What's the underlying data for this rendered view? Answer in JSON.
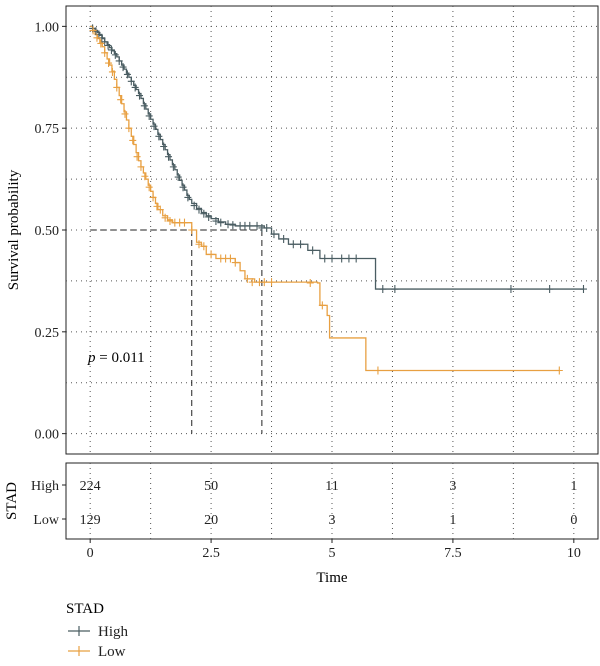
{
  "chart_data": {
    "type": "line",
    "subtype": "kaplan-meier",
    "ylabel": "Survival probability",
    "xlabel": "Time",
    "xlim": [
      -0.5,
      10.5
    ],
    "ylim": [
      -0.05,
      1.05
    ],
    "x_ticks": [
      0,
      2.5,
      5,
      7.5,
      10
    ],
    "x_tick_labels": [
      "0",
      "2.5",
      "5",
      "7.5",
      "10"
    ],
    "y_ticks": [
      0,
      0.25,
      0.5,
      0.75,
      1
    ],
    "y_tick_labels": [
      "0.00",
      "0.25",
      "0.50",
      "0.75",
      "1.00"
    ],
    "grid": true,
    "annotation": {
      "text_prefix": "p",
      "text_value": " = 0.011",
      "x": 0.02,
      "y": 0.19
    },
    "median_lines": {
      "y": 0.5,
      "x": [
        2.1,
        3.55
      ]
    },
    "colors": {
      "High": "#4a5d62",
      "Low": "#e8a042"
    },
    "series": [
      {
        "name": "High",
        "steps": [
          [
            0,
            1.0
          ],
          [
            0.05,
            0.995
          ],
          [
            0.1,
            0.99
          ],
          [
            0.15,
            0.985
          ],
          [
            0.2,
            0.978
          ],
          [
            0.25,
            0.97
          ],
          [
            0.3,
            0.962
          ],
          [
            0.35,
            0.955
          ],
          [
            0.4,
            0.948
          ],
          [
            0.45,
            0.94
          ],
          [
            0.5,
            0.933
          ],
          [
            0.55,
            0.925
          ],
          [
            0.6,
            0.915
          ],
          [
            0.65,
            0.905
          ],
          [
            0.7,
            0.895
          ],
          [
            0.75,
            0.885
          ],
          [
            0.8,
            0.875
          ],
          [
            0.85,
            0.865
          ],
          [
            0.9,
            0.855
          ],
          [
            0.95,
            0.845
          ],
          [
            1.0,
            0.835
          ],
          [
            1.05,
            0.823
          ],
          [
            1.1,
            0.81
          ],
          [
            1.15,
            0.797
          ],
          [
            1.2,
            0.785
          ],
          [
            1.25,
            0.772
          ],
          [
            1.3,
            0.76
          ],
          [
            1.35,
            0.747
          ],
          [
            1.4,
            0.735
          ],
          [
            1.45,
            0.722
          ],
          [
            1.5,
            0.71
          ],
          [
            1.55,
            0.697
          ],
          [
            1.6,
            0.685
          ],
          [
            1.65,
            0.672
          ],
          [
            1.7,
            0.66
          ],
          [
            1.75,
            0.648
          ],
          [
            1.8,
            0.635
          ],
          [
            1.85,
            0.622
          ],
          [
            1.9,
            0.61
          ],
          [
            1.95,
            0.598
          ],
          [
            2.0,
            0.585
          ],
          [
            2.05,
            0.575
          ],
          [
            2.1,
            0.565
          ],
          [
            2.2,
            0.553
          ],
          [
            2.3,
            0.543
          ],
          [
            2.4,
            0.535
          ],
          [
            2.5,
            0.528
          ],
          [
            2.65,
            0.52
          ],
          [
            2.8,
            0.514
          ],
          [
            3.0,
            0.51
          ],
          [
            3.6,
            0.505
          ],
          [
            3.75,
            0.49
          ],
          [
            3.9,
            0.478
          ],
          [
            4.1,
            0.465
          ],
          [
            4.5,
            0.45
          ],
          [
            4.75,
            0.43
          ],
          [
            5.9,
            0.355
          ]
        ],
        "end_x": 10.2,
        "censors": [
          [
            0.05,
            0.995
          ],
          [
            0.12,
            0.988
          ],
          [
            0.18,
            0.98
          ],
          [
            0.24,
            0.972
          ],
          [
            0.3,
            0.962
          ],
          [
            0.37,
            0.953
          ],
          [
            0.44,
            0.942
          ],
          [
            0.52,
            0.93
          ],
          [
            0.6,
            0.915
          ],
          [
            0.68,
            0.9
          ],
          [
            0.77,
            0.882
          ],
          [
            0.85,
            0.865
          ],
          [
            0.93,
            0.85
          ],
          [
            1.02,
            0.83
          ],
          [
            1.12,
            0.805
          ],
          [
            1.22,
            0.78
          ],
          [
            1.32,
            0.755
          ],
          [
            1.42,
            0.73
          ],
          [
            1.52,
            0.705
          ],
          [
            1.62,
            0.68
          ],
          [
            1.72,
            0.655
          ],
          [
            1.82,
            0.63
          ],
          [
            1.92,
            0.605
          ],
          [
            2.02,
            0.58
          ],
          [
            2.15,
            0.56
          ],
          [
            2.25,
            0.55
          ],
          [
            2.35,
            0.54
          ],
          [
            2.45,
            0.532
          ],
          [
            2.6,
            0.522
          ],
          [
            2.7,
            0.518
          ],
          [
            2.85,
            0.514
          ],
          [
            2.95,
            0.512
          ],
          [
            3.1,
            0.51
          ],
          [
            3.2,
            0.51
          ],
          [
            3.3,
            0.51
          ],
          [
            3.45,
            0.51
          ],
          [
            3.55,
            0.505
          ],
          [
            3.65,
            0.505
          ],
          [
            3.8,
            0.49
          ],
          [
            4.0,
            0.478
          ],
          [
            4.2,
            0.465
          ],
          [
            4.35,
            0.465
          ],
          [
            4.6,
            0.45
          ],
          [
            4.85,
            0.43
          ],
          [
            5.0,
            0.43
          ],
          [
            5.2,
            0.43
          ],
          [
            5.35,
            0.43
          ],
          [
            5.5,
            0.43
          ],
          [
            6.05,
            0.355
          ],
          [
            6.3,
            0.355
          ],
          [
            8.7,
            0.355
          ],
          [
            9.5,
            0.355
          ],
          [
            10.2,
            0.355
          ]
        ]
      },
      {
        "name": "Low",
        "steps": [
          [
            0,
            1.0
          ],
          [
            0.05,
            0.99
          ],
          [
            0.1,
            0.98
          ],
          [
            0.15,
            0.97
          ],
          [
            0.2,
            0.96
          ],
          [
            0.25,
            0.95
          ],
          [
            0.3,
            0.935
          ],
          [
            0.35,
            0.92
          ],
          [
            0.4,
            0.905
          ],
          [
            0.45,
            0.89
          ],
          [
            0.5,
            0.87
          ],
          [
            0.55,
            0.85
          ],
          [
            0.6,
            0.83
          ],
          [
            0.65,
            0.81
          ],
          [
            0.7,
            0.79
          ],
          [
            0.75,
            0.77
          ],
          [
            0.8,
            0.75
          ],
          [
            0.85,
            0.73
          ],
          [
            0.9,
            0.71
          ],
          [
            0.95,
            0.69
          ],
          [
            1.0,
            0.67
          ],
          [
            1.05,
            0.655
          ],
          [
            1.1,
            0.64
          ],
          [
            1.15,
            0.625
          ],
          [
            1.2,
            0.61
          ],
          [
            1.25,
            0.595
          ],
          [
            1.3,
            0.58
          ],
          [
            1.35,
            0.565
          ],
          [
            1.4,
            0.55
          ],
          [
            1.5,
            0.535
          ],
          [
            1.6,
            0.525
          ],
          [
            1.7,
            0.518
          ],
          [
            2.1,
            0.5
          ],
          [
            2.2,
            0.47
          ],
          [
            2.3,
            0.46
          ],
          [
            2.4,
            0.44
          ],
          [
            2.6,
            0.43
          ],
          [
            3.0,
            0.42
          ],
          [
            3.1,
            0.4
          ],
          [
            3.2,
            0.38
          ],
          [
            3.4,
            0.372
          ],
          [
            4.7,
            0.37
          ],
          [
            4.75,
            0.315
          ],
          [
            4.9,
            0.29
          ],
          [
            4.95,
            0.235
          ],
          [
            5.7,
            0.155
          ]
        ],
        "end_x": 9.7,
        "censors": [
          [
            0.06,
            0.99
          ],
          [
            0.14,
            0.972
          ],
          [
            0.22,
            0.958
          ],
          [
            0.3,
            0.935
          ],
          [
            0.38,
            0.91
          ],
          [
            0.46,
            0.888
          ],
          [
            0.55,
            0.85
          ],
          [
            0.63,
            0.82
          ],
          [
            0.72,
            0.785
          ],
          [
            0.8,
            0.75
          ],
          [
            0.88,
            0.72
          ],
          [
            0.97,
            0.68
          ],
          [
            1.05,
            0.655
          ],
          [
            1.13,
            0.632
          ],
          [
            1.22,
            0.605
          ],
          [
            1.3,
            0.58
          ],
          [
            1.38,
            0.558
          ],
          [
            1.45,
            0.55
          ],
          [
            1.55,
            0.53
          ],
          [
            1.65,
            0.522
          ],
          [
            1.75,
            0.518
          ],
          [
            1.85,
            0.518
          ],
          [
            1.95,
            0.518
          ],
          [
            2.1,
            0.5
          ],
          [
            2.25,
            0.465
          ],
          [
            2.35,
            0.46
          ],
          [
            2.5,
            0.44
          ],
          [
            2.7,
            0.43
          ],
          [
            2.8,
            0.43
          ],
          [
            2.9,
            0.43
          ],
          [
            3.0,
            0.42
          ],
          [
            3.25,
            0.38
          ],
          [
            3.35,
            0.372
          ],
          [
            3.5,
            0.372
          ],
          [
            3.6,
            0.372
          ],
          [
            3.75,
            0.372
          ],
          [
            4.55,
            0.37
          ],
          [
            4.8,
            0.315
          ],
          [
            5.95,
            0.155
          ],
          [
            9.7,
            0.155
          ]
        ]
      }
    ],
    "risk_table": {
      "title": "STAD",
      "time_points": [
        0,
        2.5,
        5,
        7.5,
        10
      ],
      "rows": [
        {
          "label": "High",
          "counts": [
            "224",
            "50",
            "11",
            "3",
            "1"
          ]
        },
        {
          "label": "Low",
          "counts": [
            "129",
            "20",
            "3",
            "1",
            "0"
          ]
        }
      ]
    },
    "legend": {
      "title": "STAD",
      "position": "bottom-left",
      "items": [
        "High",
        "Low"
      ]
    }
  }
}
